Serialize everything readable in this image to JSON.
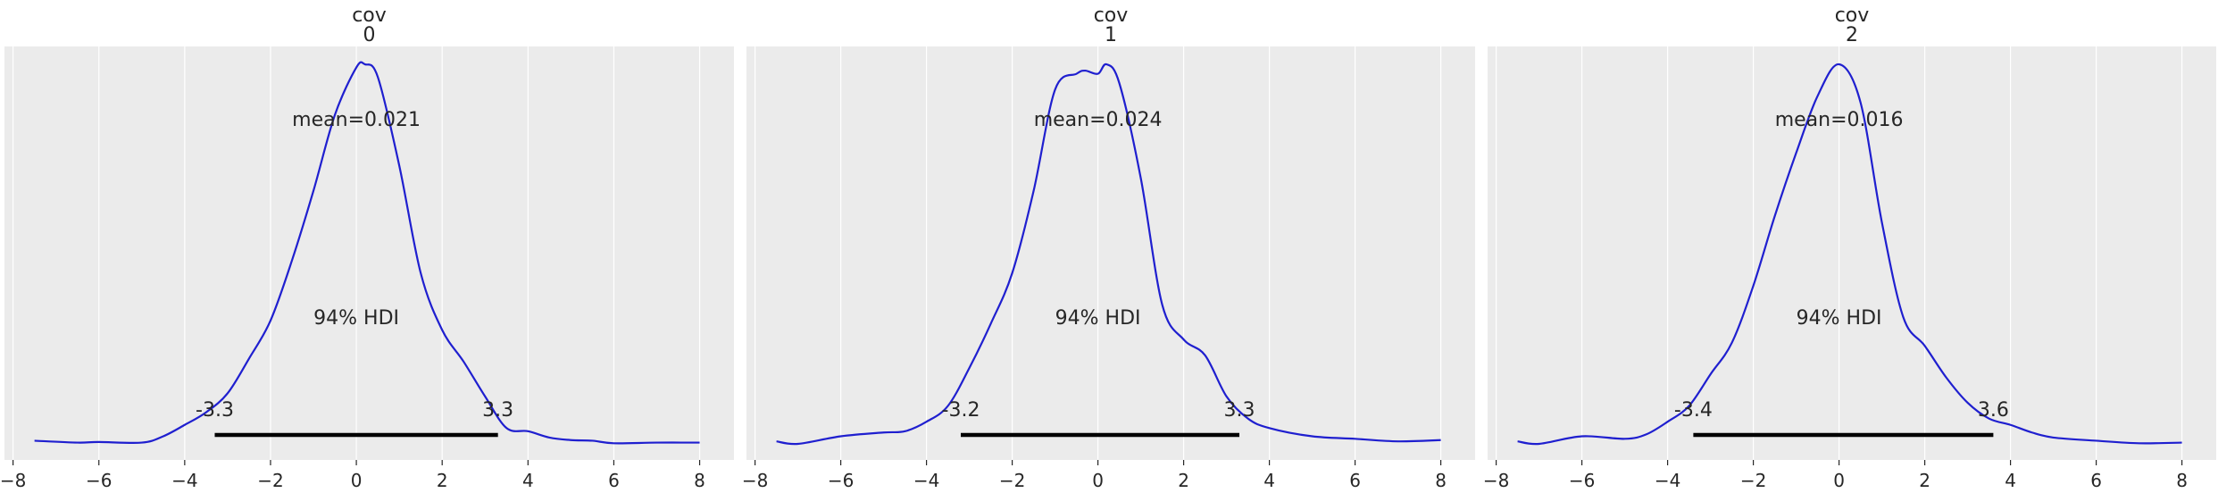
{
  "chart_data": [
    {
      "type": "density",
      "title_line1": "cov",
      "title_line2": "0",
      "xlim": [
        -8.2,
        8.8
      ],
      "xticks": [
        -8,
        -6,
        -4,
        -2,
        0,
        2,
        4,
        6,
        8
      ],
      "xtick_labels": [
        "−8",
        "−6",
        "−4",
        "−2",
        "0",
        "2",
        "4",
        "6",
        "8"
      ],
      "grid": true,
      "line_color": "#1f1fcf",
      "mean_label": "mean=0.021",
      "hdi_label": "94% HDI",
      "hdi_low": -3.3,
      "hdi_high": 3.3,
      "hdi_low_label": "-3.3",
      "hdi_high_label": "3.3",
      "density": {
        "x": [
          -7.5,
          -6.5,
          -6.0,
          -5.0,
          -4.5,
          -4.0,
          -3.5,
          -3.0,
          -2.5,
          -2.0,
          -1.5,
          -1.0,
          -0.5,
          0.0,
          0.2,
          0.5,
          1.0,
          1.5,
          2.0,
          2.5,
          3.0,
          3.5,
          4.0,
          4.5,
          5.0,
          5.5,
          6.0,
          7.0,
          8.0
        ],
        "y": [
          0.005,
          0.002,
          0.003,
          0.002,
          0.012,
          0.03,
          0.05,
          0.08,
          0.135,
          0.195,
          0.29,
          0.4,
          0.52,
          0.595,
          0.6,
          0.58,
          0.44,
          0.27,
          0.18,
          0.13,
          0.075,
          0.025,
          0.02,
          0.01,
          0.006,
          0.005,
          0.001,
          0.002,
          0.002
        ],
        "ymax": 0.6
      }
    },
    {
      "type": "density",
      "title_line1": "cov",
      "title_line2": "1",
      "xlim": [
        -8.2,
        8.8
      ],
      "xticks": [
        -8,
        -6,
        -4,
        -2,
        0,
        2,
        4,
        6,
        8
      ],
      "xtick_labels": [
        "−8",
        "−6",
        "−4",
        "−2",
        "0",
        "2",
        "4",
        "6",
        "8"
      ],
      "grid": true,
      "line_color": "#1f1fcf",
      "mean_label": "mean=0.024",
      "hdi_label": "94% HDI",
      "hdi_low": -3.2,
      "hdi_high": 3.3,
      "hdi_low_label": "-3.2",
      "hdi_high_label": "3.3",
      "density": {
        "x": [
          -7.5,
          -7.0,
          -6.0,
          -5.0,
          -4.5,
          -4.0,
          -3.5,
          -3.0,
          -2.5,
          -2.0,
          -1.5,
          -1.0,
          -0.5,
          -0.3,
          0.0,
          0.2,
          0.5,
          1.0,
          1.5,
          2.0,
          2.5,
          3.0,
          3.5,
          4.0,
          5.0,
          6.0,
          7.0,
          8.0
        ],
        "y": [
          0.004,
          0.0,
          0.012,
          0.018,
          0.02,
          0.035,
          0.06,
          0.12,
          0.19,
          0.27,
          0.4,
          0.56,
          0.585,
          0.59,
          0.585,
          0.6,
          0.57,
          0.42,
          0.22,
          0.165,
          0.14,
          0.075,
          0.04,
          0.025,
          0.012,
          0.008,
          0.004,
          0.006
        ],
        "ymax": 0.6
      }
    },
    {
      "type": "density",
      "title_line1": "cov",
      "title_line2": "2",
      "xlim": [
        -8.2,
        8.8
      ],
      "xticks": [
        -8,
        -6,
        -4,
        -2,
        0,
        2,
        4,
        6,
        8
      ],
      "xtick_labels": [
        "−8",
        "−6",
        "−4",
        "−2",
        "0",
        "2",
        "4",
        "6",
        "8"
      ],
      "grid": true,
      "line_color": "#1f1fcf",
      "mean_label": "mean=0.016",
      "hdi_label": "94% HDI",
      "hdi_low": -3.4,
      "hdi_high": 3.6,
      "hdi_low_label": "-3.4",
      "hdi_high_label": "3.6",
      "density": {
        "x": [
          -7.5,
          -7.0,
          -6.0,
          -5.0,
          -4.5,
          -4.0,
          -3.5,
          -3.0,
          -2.5,
          -2.0,
          -1.5,
          -1.0,
          -0.5,
          0.0,
          0.5,
          1.0,
          1.5,
          2.0,
          2.5,
          3.0,
          3.5,
          4.0,
          4.5,
          5.0,
          6.0,
          7.0,
          8.0
        ],
        "y": [
          0.004,
          0.0,
          0.012,
          0.008,
          0.015,
          0.035,
          0.06,
          0.11,
          0.16,
          0.25,
          0.36,
          0.46,
          0.55,
          0.6,
          0.54,
          0.35,
          0.2,
          0.155,
          0.105,
          0.065,
          0.04,
          0.03,
          0.018,
          0.01,
          0.005,
          0.001,
          0.002
        ],
        "ymax": 0.6
      }
    }
  ]
}
